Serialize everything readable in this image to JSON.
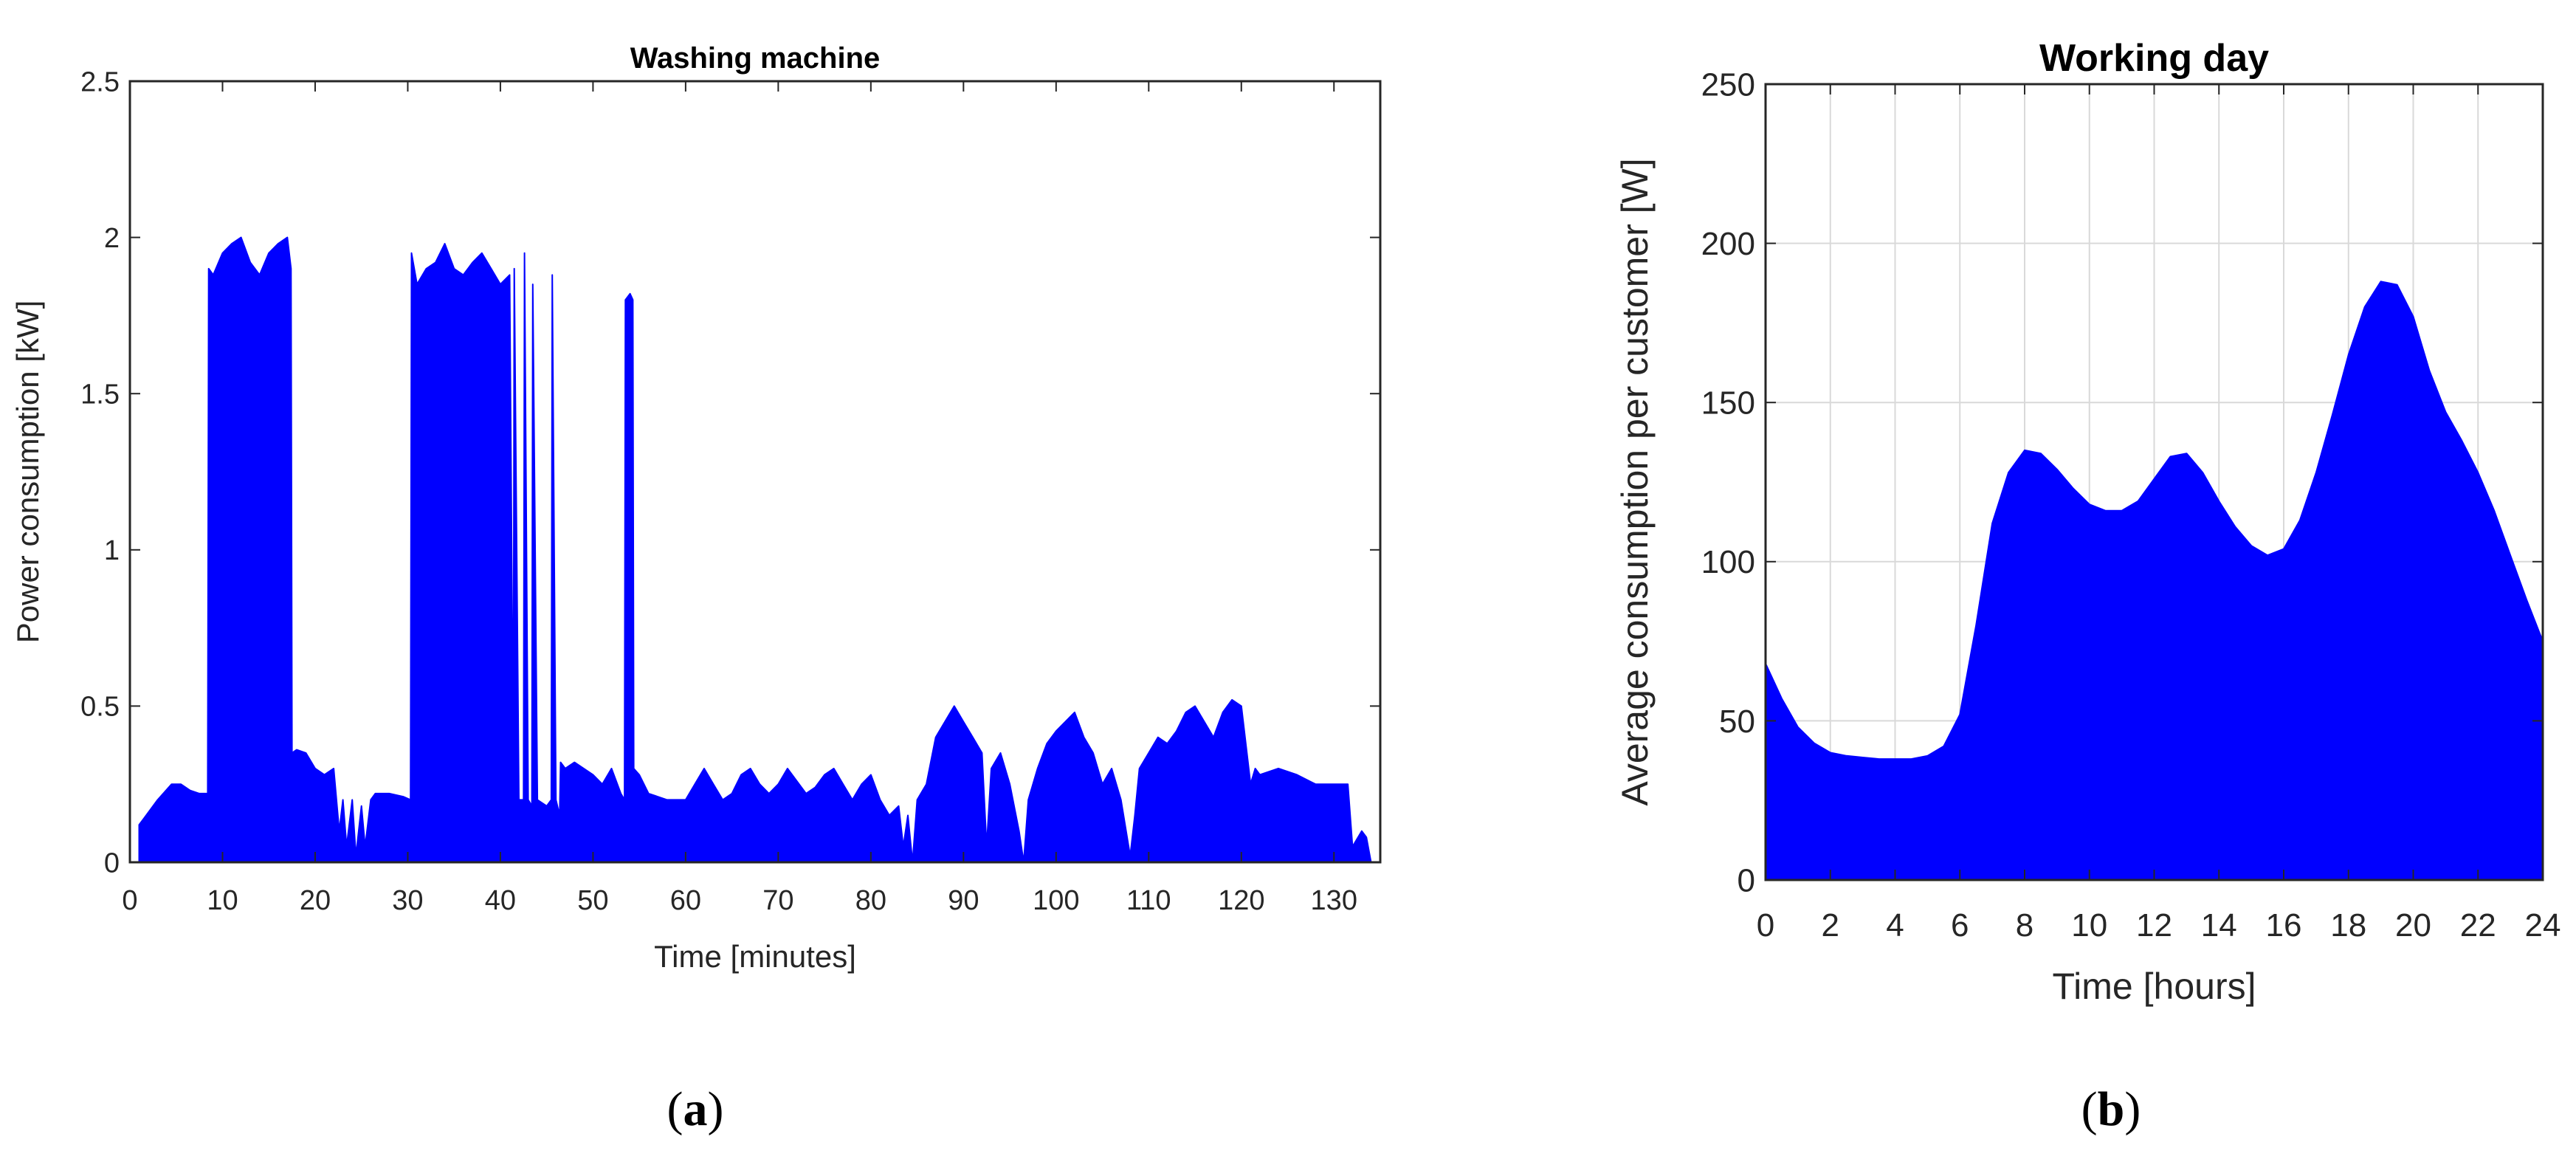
{
  "figure": {
    "panel_a_letter": "a",
    "panel_b_letter": "b"
  },
  "colors": {
    "series": "#0000ff",
    "axis": "#262626",
    "grid": "#d9d9d9"
  },
  "chart_data": [
    {
      "type": "area",
      "title": "Washing machine",
      "xlabel": "Time [minutes]",
      "ylabel": "Power consumption [kW]",
      "xlim": [
        0,
        135
      ],
      "ylim": [
        0,
        2.5
      ],
      "xticks": [
        "0",
        "10",
        "20",
        "30",
        "40",
        "50",
        "60",
        "70",
        "80",
        "90",
        "100",
        "110",
        "120",
        "130"
      ],
      "yticks": [
        "0",
        "0.5",
        "1",
        "1.5",
        "2",
        "2.5"
      ],
      "grid": false,
      "series": [
        {
          "x": [
            1,
            1.5,
            3,
            4.5,
            5.5,
            6.5,
            7.5,
            8.4,
            8.5,
            9,
            10,
            11,
            12,
            13,
            14,
            15,
            16,
            17,
            17.4,
            17.5,
            18,
            19,
            20,
            21,
            22,
            22.6,
            23,
            23.4,
            24,
            24.4,
            25,
            25.4,
            26,
            26.5,
            28,
            29.5,
            30.3,
            30.4,
            31,
            32,
            33,
            34,
            35,
            36,
            37,
            38,
            39,
            40,
            41,
            41.4,
            41.5,
            42,
            42.5,
            42.6,
            43,
            43.4,
            43.5,
            44,
            45,
            45.5,
            45.6,
            46,
            46.4,
            46.5,
            47,
            48,
            50,
            51,
            52,
            53,
            53.4,
            53.5,
            54,
            54.3,
            54.4,
            55,
            56,
            58,
            60,
            61,
            62,
            63,
            64,
            65,
            66,
            67,
            68,
            69,
            70,
            71,
            72,
            73,
            74,
            75,
            76,
            77,
            78,
            79,
            80,
            81,
            82,
            83,
            83.5,
            84,
            84.5,
            85,
            86,
            87,
            88,
            89,
            90,
            91,
            92,
            92.5,
            93,
            94,
            95,
            96,
            96.5,
            97,
            98,
            99,
            100,
            101,
            102,
            103,
            104,
            105,
            106,
            107,
            108,
            108.5,
            109,
            110,
            111,
            112,
            113,
            114,
            115,
            116,
            117,
            118,
            119,
            120,
            121,
            121.5,
            122,
            124,
            126,
            128,
            130,
            131.5,
            132,
            133,
            133.5,
            134
          ],
          "y": [
            0.12,
            0.14,
            0.2,
            0.25,
            0.25,
            0.23,
            0.22,
            0.22,
            1.9,
            1.88,
            1.95,
            1.98,
            2.0,
            1.92,
            1.88,
            1.95,
            1.98,
            2.0,
            1.9,
            0.35,
            0.36,
            0.35,
            0.3,
            0.28,
            0.3,
            0.1,
            0.2,
            0.05,
            0.2,
            0.02,
            0.18,
            0.05,
            0.2,
            0.22,
            0.22,
            0.21,
            0.2,
            1.95,
            1.85,
            1.9,
            1.92,
            1.98,
            1.9,
            1.88,
            1.92,
            1.95,
            1.9,
            1.85,
            1.88,
            0.25,
            1.9,
            0.2,
            0.2,
            1.95,
            0.2,
            0.18,
            1.85,
            0.2,
            0.18,
            0.2,
            1.88,
            0.2,
            0.15,
            0.32,
            0.3,
            0.32,
            0.28,
            0.25,
            0.3,
            0.22,
            0.2,
            1.8,
            1.82,
            1.8,
            0.3,
            0.28,
            0.22,
            0.2,
            0.2,
            0.25,
            0.3,
            0.25,
            0.2,
            0.22,
            0.28,
            0.3,
            0.25,
            0.22,
            0.25,
            0.3,
            0.26,
            0.22,
            0.24,
            0.28,
            0.3,
            0.25,
            0.2,
            0.25,
            0.28,
            0.2,
            0.15,
            0.18,
            0.05,
            0.15,
            0.0,
            0.2,
            0.25,
            0.4,
            0.45,
            0.5,
            0.45,
            0.4,
            0.35,
            0.05,
            0.3,
            0.35,
            0.25,
            0.1,
            0.0,
            0.2,
            0.3,
            0.38,
            0.42,
            0.45,
            0.48,
            0.4,
            0.35,
            0.25,
            0.3,
            0.2,
            0.02,
            0.15,
            0.3,
            0.35,
            0.4,
            0.38,
            0.42,
            0.48,
            0.5,
            0.45,
            0.4,
            0.48,
            0.52,
            0.5,
            0.25,
            0.3,
            0.28,
            0.3,
            0.28,
            0.25,
            0.25,
            0.25,
            0.05,
            0.1,
            0.08,
            0.0
          ]
        }
      ]
    },
    {
      "type": "area",
      "title": "Working day",
      "xlabel": "Time [hours]",
      "ylabel": "Average consumption per customer [W]",
      "xlim": [
        0,
        24
      ],
      "ylim": [
        0,
        250
      ],
      "xticks": [
        "0",
        "2",
        "4",
        "6",
        "8",
        "10",
        "12",
        "14",
        "16",
        "18",
        "20",
        "22",
        "24"
      ],
      "yticks": [
        "0",
        "50",
        "100",
        "150",
        "200",
        "250"
      ],
      "grid": true,
      "series": [
        {
          "x": [
            0,
            0.5,
            1,
            1.5,
            2,
            2.5,
            3,
            3.5,
            4,
            4.5,
            5,
            5.5,
            6,
            6.5,
            7,
            7.5,
            8,
            8.5,
            9,
            9.5,
            10,
            10.5,
            11,
            11.5,
            12,
            12.5,
            13,
            13.5,
            14,
            14.5,
            15,
            15.5,
            16,
            16.5,
            17,
            17.5,
            18,
            18.5,
            19,
            19.5,
            20,
            20.5,
            21,
            21.5,
            22,
            22.5,
            23,
            23.5,
            24
          ],
          "y": [
            68,
            57,
            48,
            43,
            40,
            39,
            38.5,
            38,
            38,
            38,
            39,
            42,
            52,
            80,
            112,
            128,
            135,
            134,
            129,
            123,
            118,
            116,
            116,
            119,
            126,
            133,
            134,
            128,
            119,
            111,
            105,
            102,
            104,
            113,
            128,
            146,
            165,
            180,
            188,
            187,
            177,
            160,
            147,
            138,
            128,
            116,
            102,
            88,
            75
          ]
        }
      ]
    }
  ]
}
